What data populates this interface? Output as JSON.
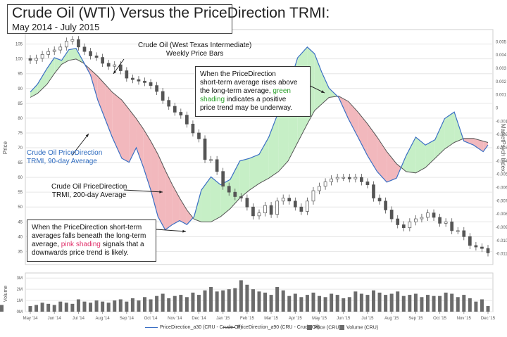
{
  "title": "Crude Oil (WTI) Versus the PriceDirection TRMI:",
  "subtitle": "May 2014 - July 2015",
  "annotations": {
    "bars": [
      "Crude Oil (West Texas Intermediate)",
      "Weekly Price Bars"
    ],
    "green_box": {
      "l1": "When the PriceDirection",
      "l2": "short-term average rises above",
      "l3": "the long-term average,",
      "l3b": "green",
      "l4a": "shading",
      "l4b": "indicates a positive",
      "l5": "price trend may be underway."
    },
    "ma90": [
      "Crude Oil PriceDirection",
      "TRMI, 90-day Average"
    ],
    "ma200": [
      "Crude Oil PriceDirection",
      "TRMI, 200-day Average"
    ],
    "pink_box": {
      "l1": "When the PriceDirection short-term",
      "l2": "averages falls beneath the long-term",
      "l3a": "average,",
      "l3b": "pink shading",
      "l3c": "signals that a",
      "l4": "downwards price trend is likely."
    }
  },
  "legend": [
    {
      "label": "PriceDirection_a30 (CRU - Crude Oil)",
      "color": "#3a6fc4",
      "kind": "line"
    },
    {
      "label": "PriceDirection_a90 (CRU - Crude Oil)",
      "color": "#555555",
      "kind": "line"
    },
    {
      "label": "Price (CRU)",
      "color": "#6b6b6b",
      "kind": "bar"
    },
    {
      "label": "Volume (CRU)",
      "color": "#6b6b6b",
      "kind": "bar"
    }
  ],
  "colors": {
    "short": "#3a6fc4",
    "long": "#555555",
    "green_fill": "#c6efc6",
    "pink_fill": "#f2b8bd",
    "bar": "#555555",
    "grid": "#e6e6e6"
  },
  "chart_data": {
    "type": "line",
    "x_ticks": [
      "May '14",
      "Jun '14",
      "Jul '14",
      "Aug '14",
      "Sep '14",
      "Oct '14",
      "Nov '14",
      "Dec '14",
      "Jan '15",
      "Feb '15",
      "Mar '15",
      "Apr '15",
      "May '15",
      "Jun '15",
      "Jul '15",
      "Aug '15",
      "Sep '15",
      "Oct '15",
      "Nov '15",
      "Dec '15"
    ],
    "price_axis": {
      "label": "Price",
      "ticks": [
        35,
        40,
        45,
        50,
        55,
        60,
        65,
        70,
        75,
        80,
        85,
        90,
        95,
        100,
        105
      ],
      "range": [
        32,
        108
      ]
    },
    "trmi_axis": {
      "label": "MarketPsych Index",
      "ticks": [
        "0.005",
        "0.004",
        "0.003",
        "0.002",
        "0.001",
        "0",
        "-0.001",
        "-0.002",
        "-0.003",
        "-0.004",
        "-0.005",
        "-0.006",
        "-0.007",
        "-0.008",
        "-0.009",
        "-0.010",
        "-0.011"
      ],
      "range": [
        -0.0115,
        0.0055
      ]
    },
    "volume_axis": {
      "label": "Volume",
      "ticks": [
        "0M",
        "1M",
        "2M",
        "3M"
      ],
      "range": [
        0,
        3.2
      ]
    },
    "weeks_x": [
      0,
      0.25,
      0.5,
      0.75,
      1,
      1.25,
      1.5,
      1.75,
      2,
      2.25,
      2.5,
      2.75,
      3,
      3.25,
      3.5,
      3.75,
      4,
      4.25,
      4.5,
      4.75,
      5,
      5.25,
      5.5,
      5.75,
      6,
      6.25,
      6.5,
      6.75,
      7,
      7.25,
      7.5,
      7.75,
      8,
      8.25,
      8.5,
      8.75,
      9,
      9.25,
      9.5,
      9.75,
      10,
      10.25,
      10.5,
      10.75,
      11,
      11.25,
      11.5,
      11.75,
      12,
      12.25,
      12.5,
      12.75,
      13,
      13.25,
      13.5,
      13.75,
      14,
      14.25,
      14.5,
      14.75,
      15,
      15.25,
      15.5,
      15.75,
      16,
      16.25,
      16.5,
      16.75,
      17,
      17.25,
      17.5,
      17.75,
      18,
      18.25,
      18.5,
      18.75,
      19
    ],
    "price_close": [
      99.5,
      100.2,
      101.5,
      102.5,
      103,
      104,
      106,
      106.5,
      104,
      102.5,
      101,
      100.5,
      98.5,
      97.5,
      98,
      96,
      93.5,
      93,
      92.5,
      92,
      91,
      89,
      86,
      84,
      82,
      81,
      78,
      75,
      73,
      66,
      66,
      62,
      57,
      55,
      53.5,
      53,
      50,
      47,
      48,
      50.5,
      47.5,
      52,
      53,
      52,
      50,
      48.5,
      52,
      55.5,
      57,
      58.5,
      59.5,
      60,
      60,
      59.5,
      60,
      58.5,
      57.5,
      53,
      52,
      49,
      46,
      44,
      43,
      45,
      46,
      46.5,
      48,
      46.5,
      44.5,
      45,
      42,
      42,
      40,
      37,
      36.5,
      36,
      34.5,
      34
    ],
    "volume": [
      0.5,
      0.6,
      0.8,
      0.7,
      0.6,
      0.9,
      0.8,
      0.7,
      1.1,
      0.9,
      0.8,
      1.0,
      0.9,
      0.8,
      1.0,
      1.1,
      0.9,
      1.2,
      1.0,
      1.3,
      1.1,
      1.4,
      1.6,
      1.2,
      1.4,
      1.5,
      1.3,
      1.7,
      1.5,
      1.9,
      2.2,
      1.8,
      1.9,
      2.0,
      2.1,
      2.8,
      2.4,
      2.0,
      1.8,
      1.7,
      1.5,
      2.2,
      1.9,
      1.4,
      1.6,
      1.3,
      1.5,
      1.7,
      1.4,
      1.3,
      1.6,
      1.5,
      1.2,
      1.3,
      1.8,
      1.6,
      1.5,
      1.9,
      1.7,
      1.5,
      1.6,
      1.8,
      1.4,
      1.5,
      1.6,
      1.3,
      1.5,
      1.4,
      1.4,
      1.7,
      1.6,
      1.3,
      1.5,
      1.2,
      0.9,
      1.1,
      0.5,
      0.6
    ],
    "series": [
      {
        "name": "PriceDirection_a30 (CRU - Crude Oil)",
        "x": [
          0,
          0.3,
          0.7,
          1,
          1.3,
          1.6,
          1.9,
          2.2,
          2.5,
          2.8,
          3.1,
          3.4,
          3.8,
          4.1,
          4.4,
          4.7,
          5,
          5.3,
          5.6,
          5.9,
          6.2,
          6.5,
          6.8,
          7.1,
          7.5,
          7.9,
          8.3,
          8.7,
          9.1,
          9.5,
          9.9,
          10.3,
          10.7,
          11.1,
          11.5,
          11.8,
          12.1,
          12.4,
          12.8,
          13.2,
          13.6,
          14,
          14.4,
          14.8,
          15.2,
          15.6,
          16,
          16.4,
          16.8,
          17.2,
          17.6,
          18,
          18.4,
          18.8,
          19
        ],
        "values": [
          0.0012,
          0.0018,
          0.003,
          0.0038,
          0.0036,
          0.0044,
          0.0045,
          0.0035,
          0.0025,
          0.0006,
          -0.0008,
          -0.0022,
          -0.0038,
          -0.0041,
          -0.003,
          -0.0045,
          -0.0062,
          -0.0082,
          -0.0092,
          -0.0088,
          -0.0085,
          -0.0088,
          -0.0082,
          -0.0062,
          -0.0052,
          -0.0058,
          -0.0054,
          -0.004,
          -0.0038,
          -0.0035,
          -0.0022,
          -0.0003,
          0.0015,
          0.0038,
          0.0046,
          0.0041,
          0.0027,
          0.0015,
          0.0008,
          -0.0008,
          -0.0022,
          -0.0036,
          -0.0048,
          -0.0056,
          -0.0053,
          -0.0036,
          -0.0022,
          -0.0028,
          -0.0024,
          -0.0008,
          -0.0003,
          -0.0025,
          -0.0028,
          -0.0033,
          -0.0028
        ]
      },
      {
        "name": "PriceDirection_a90 (CRU - Crude Oil)",
        "x": [
          0,
          0.3,
          0.7,
          1,
          1.3,
          1.6,
          1.9,
          2.2,
          2.5,
          2.8,
          3.1,
          3.4,
          3.8,
          4.1,
          4.4,
          4.7,
          5,
          5.3,
          5.6,
          5.9,
          6.2,
          6.5,
          6.8,
          7.1,
          7.5,
          7.9,
          8.3,
          8.7,
          9.1,
          9.5,
          9.9,
          10.3,
          10.7,
          11.1,
          11.5,
          11.8,
          12.1,
          12.4,
          12.8,
          13.2,
          13.6,
          14,
          14.4,
          14.8,
          15.2,
          15.6,
          16,
          16.4,
          16.8,
          17.2,
          17.6,
          18,
          18.4,
          18.8,
          19
        ],
        "values": [
          0.0008,
          0.0011,
          0.0018,
          0.0026,
          0.0033,
          0.0036,
          0.0037,
          0.0034,
          0.0029,
          0.0024,
          0.0018,
          0.0012,
          0.0006,
          -0.0001,
          -0.0008,
          -0.0016,
          -0.0025,
          -0.0035,
          -0.0047,
          -0.0058,
          -0.0068,
          -0.0077,
          -0.0084,
          -0.0086,
          -0.0086,
          -0.0082,
          -0.0076,
          -0.0068,
          -0.0062,
          -0.0057,
          -0.0053,
          -0.0048,
          -0.004,
          -0.0026,
          -0.0012,
          -0.0002,
          0.0003,
          0.0008,
          0.0009,
          0.0005,
          -0.0003,
          -0.0012,
          -0.0022,
          -0.0033,
          -0.0042,
          -0.0048,
          -0.0049,
          -0.0045,
          -0.0038,
          -0.0031,
          -0.0026,
          -0.0023,
          -0.0023,
          -0.0025,
          -0.0026
        ]
      }
    ]
  }
}
